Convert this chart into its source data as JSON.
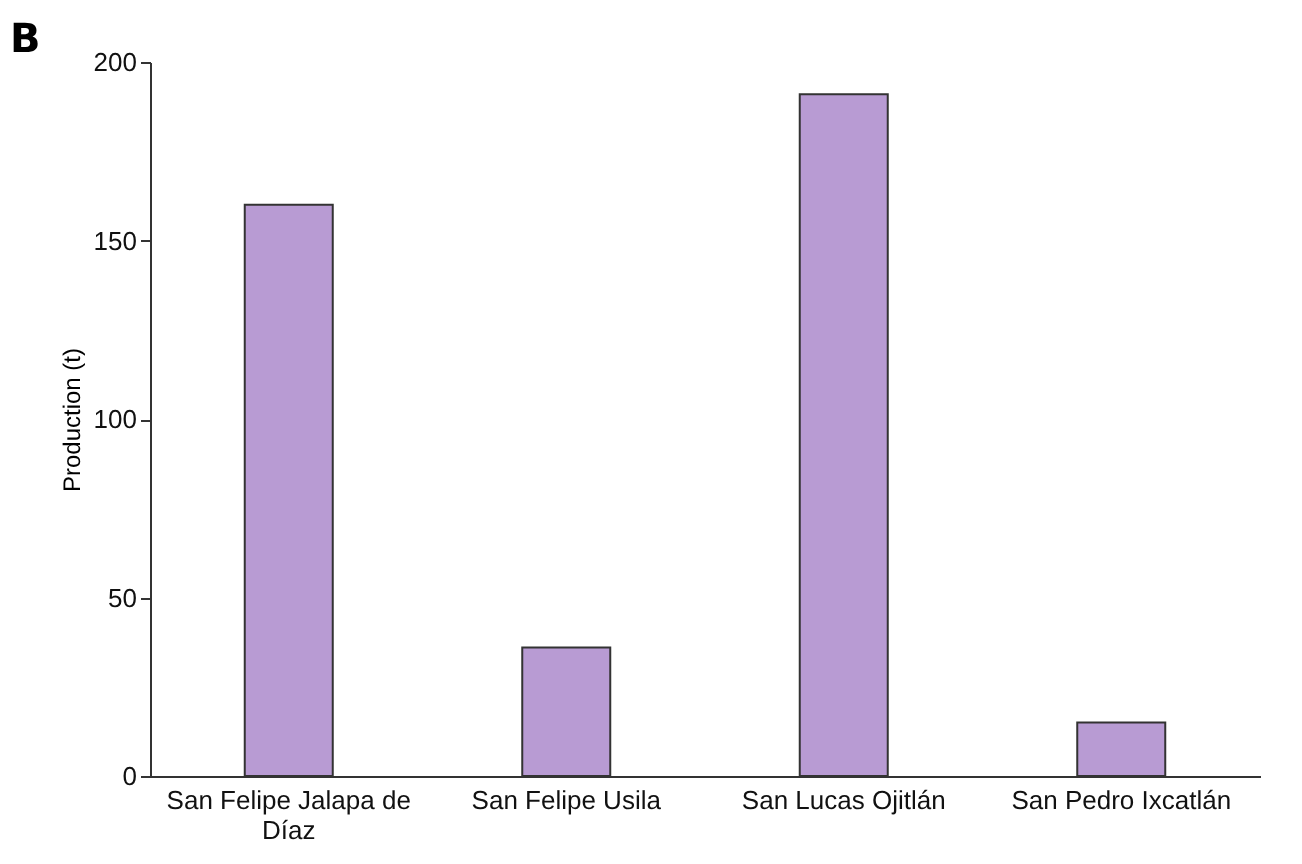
{
  "chart_data": {
    "type": "bar",
    "title": "B",
    "ylabel": "Production (t)",
    "categories": [
      "San Felipe Jalapa de Díaz",
      "San Felipe Usila",
      "San Lucas Ojitlán",
      "San Pedro Ixcatlán"
    ],
    "values": [
      160,
      36,
      191,
      15
    ],
    "color": "#b89bd3",
    "ylim": [
      0,
      200
    ],
    "yticks": [
      0,
      50,
      100,
      150,
      200
    ],
    "grid": false
  }
}
